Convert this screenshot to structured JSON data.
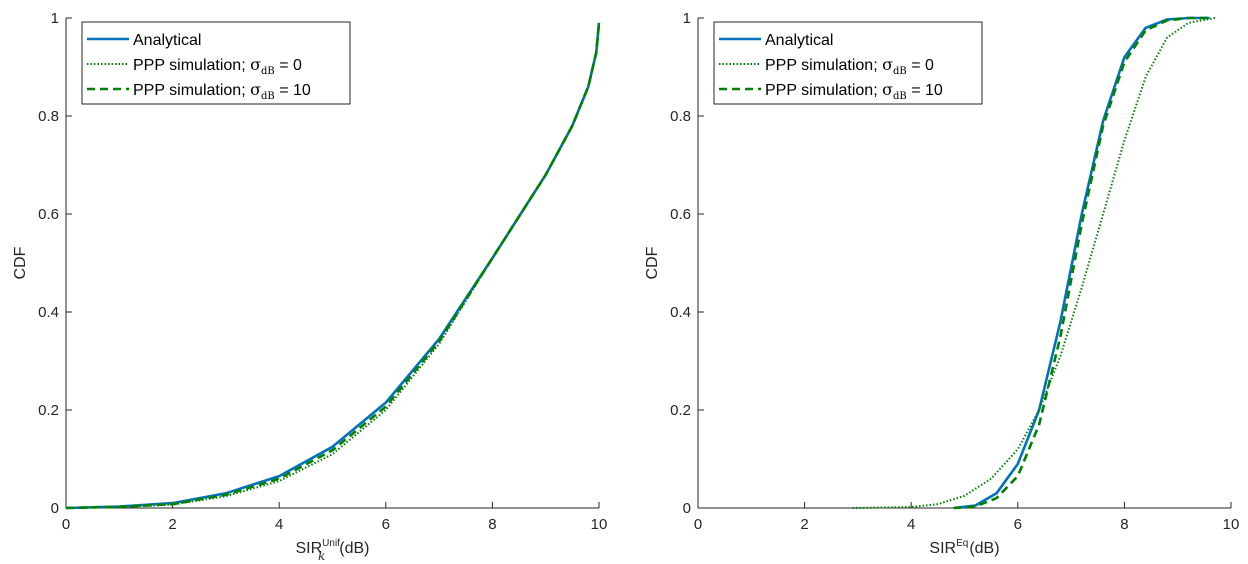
{
  "colors": {
    "analytical": "#0072BD",
    "sim": "#008000",
    "axis": "#262626"
  },
  "chart_data": [
    {
      "type": "line",
      "xlabel_main": "SIR",
      "xlabel_sup": "Unif",
      "xlabel_sub": "k",
      "xlabel_unit": "(dB)",
      "ylabel": "CDF",
      "xlim": [
        0,
        10
      ],
      "ylim": [
        0,
        1
      ],
      "xticks": [
        "0",
        "2",
        "4",
        "6",
        "8",
        "10"
      ],
      "yticks": [
        "0",
        "0.2",
        "0.4",
        "0.6",
        "0.8",
        "1"
      ],
      "grid": false,
      "legend_position": "top-left",
      "legend": [
        {
          "prefix": "Analytical",
          "sigma": "",
          "sub": "",
          "suffix": "",
          "style": "solid"
        },
        {
          "prefix": "PPP simulation; ",
          "sigma": "σ",
          "sub": "dB",
          "suffix": " = 0",
          "style": "dotted"
        },
        {
          "prefix": "PPP simulation; ",
          "sigma": "σ",
          "sub": "dB",
          "suffix": " = 10",
          "style": "dashed"
        }
      ],
      "series": [
        {
          "name": "Analytical",
          "style": "solid",
          "x": [
            0,
            1,
            2,
            3,
            4,
            5,
            6,
            7,
            8,
            9,
            9.5,
            9.8,
            9.95,
            10
          ],
          "y": [
            0,
            0.003,
            0.01,
            0.03,
            0.065,
            0.125,
            0.215,
            0.345,
            0.51,
            0.68,
            0.78,
            0.86,
            0.93,
            0.99
          ]
        },
        {
          "name": "PPP simulation; σdB = 0",
          "style": "dotted",
          "x": [
            0,
            1,
            2,
            3,
            4,
            5,
            6,
            7,
            8,
            9,
            9.5,
            9.8,
            9.95,
            10
          ],
          "y": [
            0,
            0.002,
            0.007,
            0.024,
            0.055,
            0.11,
            0.2,
            0.335,
            0.51,
            0.68,
            0.78,
            0.86,
            0.93,
            0.99
          ]
        },
        {
          "name": "PPP simulation; σdB = 10",
          "style": "dashed",
          "x": [
            0,
            1,
            2,
            3,
            4,
            5,
            6,
            7,
            8,
            9,
            9.5,
            9.8,
            9.95,
            10
          ],
          "y": [
            0,
            0.0025,
            0.008,
            0.027,
            0.06,
            0.118,
            0.207,
            0.34,
            0.51,
            0.68,
            0.78,
            0.86,
            0.93,
            0.99
          ]
        }
      ]
    },
    {
      "type": "line",
      "xlabel_main": "SIR",
      "xlabel_sup": "Eq",
      "xlabel_sub": "",
      "xlabel_unit": "(dB)",
      "ylabel": "CDF",
      "xlim": [
        0,
        10
      ],
      "ylim": [
        0,
        1
      ],
      "xticks": [
        "0",
        "2",
        "4",
        "6",
        "8",
        "10"
      ],
      "yticks": [
        "0",
        "0.2",
        "0.4",
        "0.6",
        "0.8",
        "1"
      ],
      "grid": false,
      "legend_position": "top-left",
      "legend": [
        {
          "prefix": "Analytical",
          "sigma": "",
          "sub": "",
          "suffix": "",
          "style": "solid"
        },
        {
          "prefix": "PPP simulation; ",
          "sigma": "σ",
          "sub": "dB",
          "suffix": " = 0",
          "style": "dotted"
        },
        {
          "prefix": "PPP simulation; ",
          "sigma": "σ",
          "sub": "dB",
          "suffix": " = 10",
          "style": "dashed"
        }
      ],
      "series": [
        {
          "name": "Analytical",
          "style": "solid",
          "x": [
            4.8,
            5.2,
            5.6,
            6.0,
            6.4,
            6.8,
            7.2,
            7.6,
            8.0,
            8.4,
            8.8,
            9.2,
            9.6
          ],
          "y": [
            0,
            0.005,
            0.03,
            0.09,
            0.2,
            0.38,
            0.6,
            0.79,
            0.92,
            0.98,
            0.997,
            1,
            1
          ]
        },
        {
          "name": "PPP simulation; σdB = 0",
          "style": "dotted",
          "x": [
            2.9,
            4.0,
            4.5,
            5.0,
            5.5,
            6.0,
            6.4,
            6.8,
            7.2,
            7.6,
            8.0,
            8.4,
            8.8,
            9.2,
            9.7
          ],
          "y": [
            0,
            0.002,
            0.008,
            0.025,
            0.06,
            0.12,
            0.2,
            0.31,
            0.45,
            0.6,
            0.75,
            0.88,
            0.96,
            0.99,
            1
          ]
        },
        {
          "name": "PPP simulation; σdB = 10",
          "style": "dashed",
          "x": [
            4.8,
            5.2,
            5.6,
            6.0,
            6.4,
            6.8,
            7.2,
            7.6,
            8.0,
            8.4,
            8.8,
            9.2,
            9.6
          ],
          "y": [
            0,
            0.003,
            0.02,
            0.065,
            0.17,
            0.35,
            0.58,
            0.78,
            0.91,
            0.975,
            0.995,
            1,
            1
          ]
        }
      ]
    }
  ]
}
